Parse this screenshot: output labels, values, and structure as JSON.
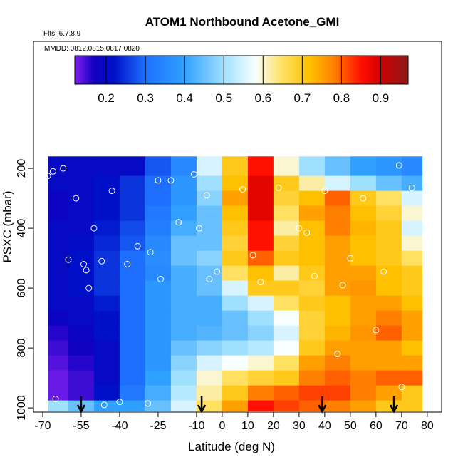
{
  "chart_data": {
    "type": "heatmap",
    "title": "ATOM1 Northbound Acetone_GMI",
    "subtitle": "Flts: 6,7,8,9",
    "annotation": "MMDD: 0812,0815,0817,0820",
    "x_label": "Latitude (deg N)",
    "y_label": "PSXC (mbar)",
    "xlim": [
      -73.6,
      85.6
    ],
    "xticks": [
      -70,
      -55,
      -40,
      -25,
      -10,
      0,
      10,
      20,
      30,
      40,
      50,
      60,
      70,
      80
    ],
    "ylim": [
      1014,
      -224
    ],
    "yticks": [
      200,
      400,
      600,
      800,
      1000
    ],
    "colorbar_lim": [
      0.12,
      0.97
    ],
    "colorbar_ticks": [
      0.2,
      0.3,
      0.4,
      0.5,
      0.6,
      0.7,
      0.8,
      0.9
    ],
    "colormap": [
      {
        "value": 0.12,
        "color": "#8020f0"
      },
      {
        "value": 0.17,
        "color": "#1000c0"
      },
      {
        "value": 0.22,
        "color": "#0010c8"
      },
      {
        "value": 0.3,
        "color": "#1e6fff"
      },
      {
        "value": 0.4,
        "color": "#30a0ff"
      },
      {
        "value": 0.5,
        "color": "#a0e0ff"
      },
      {
        "value": 0.58,
        "color": "#f8ffff"
      },
      {
        "value": 0.65,
        "color": "#ffe060"
      },
      {
        "value": 0.72,
        "color": "#ffc000"
      },
      {
        "value": 0.78,
        "color": "#ff8000"
      },
      {
        "value": 0.85,
        "color": "#ff1000"
      },
      {
        "value": 0.9,
        "color": "#d00000"
      },
      {
        "value": 0.97,
        "color": "#8b1a1a"
      }
    ],
    "lat_edges": [
      -68,
      -60,
      -50,
      -40,
      -30,
      -20,
      -10,
      0,
      10,
      20,
      30,
      40,
      50,
      60,
      70,
      78
    ],
    "pressure_edges": [
      160,
      225,
      275,
      325,
      375,
      425,
      475,
      525,
      575,
      625,
      675,
      725,
      775,
      825,
      875,
      925,
      975,
      1010
    ],
    "z": [
      [
        0.2,
        0.2,
        0.2,
        0.2,
        0.28,
        0.35,
        0.55,
        0.7,
        0.85,
        0.6,
        0.5,
        0.45,
        0.4,
        0.38,
        0.35
      ],
      [
        0.2,
        0.2,
        0.22,
        0.25,
        0.3,
        0.38,
        0.5,
        0.72,
        0.88,
        0.7,
        0.62,
        0.55,
        0.5,
        0.45,
        0.42
      ],
      [
        0.18,
        0.2,
        0.22,
        0.25,
        0.3,
        0.38,
        0.48,
        0.75,
        0.88,
        0.68,
        0.72,
        0.8,
        0.7,
        0.65,
        0.55
      ],
      [
        0.18,
        0.2,
        0.22,
        0.25,
        0.32,
        0.4,
        0.45,
        0.72,
        0.88,
        0.65,
        0.75,
        0.78,
        0.72,
        0.68,
        0.6
      ],
      [
        0.2,
        0.2,
        0.23,
        0.27,
        0.33,
        0.42,
        0.45,
        0.7,
        0.85,
        0.62,
        0.72,
        0.78,
        0.73,
        0.7,
        0.55
      ],
      [
        0.2,
        0.21,
        0.24,
        0.28,
        0.35,
        0.45,
        0.45,
        0.68,
        0.85,
        0.68,
        0.72,
        0.75,
        0.72,
        0.7,
        0.6
      ],
      [
        0.2,
        0.22,
        0.25,
        0.3,
        0.36,
        0.45,
        0.48,
        0.7,
        0.8,
        0.7,
        0.72,
        0.75,
        0.72,
        0.7,
        0.65
      ],
      [
        0.2,
        0.22,
        0.25,
        0.3,
        0.35,
        0.42,
        0.45,
        0.65,
        0.72,
        0.62,
        0.7,
        0.75,
        0.75,
        0.72,
        0.7
      ],
      [
        0.2,
        0.22,
        0.25,
        0.3,
        0.38,
        0.42,
        0.45,
        0.55,
        0.7,
        0.7,
        0.68,
        0.75,
        0.76,
        0.72,
        0.7
      ],
      [
        0.2,
        0.2,
        0.23,
        0.3,
        0.38,
        0.42,
        0.42,
        0.5,
        0.55,
        0.65,
        0.7,
        0.72,
        0.75,
        0.75,
        0.72
      ],
      [
        0.18,
        0.2,
        0.22,
        0.3,
        0.38,
        0.42,
        0.42,
        0.45,
        0.5,
        0.58,
        0.68,
        0.72,
        0.75,
        0.78,
        0.75
      ],
      [
        0.16,
        0.18,
        0.22,
        0.3,
        0.38,
        0.42,
        0.43,
        0.45,
        0.48,
        0.55,
        0.68,
        0.73,
        0.76,
        0.8,
        0.75
      ],
      [
        0.15,
        0.17,
        0.2,
        0.3,
        0.38,
        0.45,
        0.48,
        0.5,
        0.52,
        0.58,
        0.7,
        0.75,
        0.75,
        0.75,
        0.72
      ],
      [
        0.14,
        0.16,
        0.2,
        0.3,
        0.38,
        0.48,
        0.55,
        0.58,
        0.6,
        0.65,
        0.75,
        0.78,
        0.75,
        0.75,
        0.75
      ],
      [
        0.13,
        0.15,
        0.2,
        0.3,
        0.4,
        0.5,
        0.6,
        0.65,
        0.68,
        0.7,
        0.78,
        0.8,
        0.78,
        0.8,
        0.8
      ],
      [
        0.13,
        0.15,
        0.22,
        0.32,
        0.42,
        0.52,
        0.62,
        0.7,
        0.78,
        0.8,
        0.82,
        0.82,
        0.78,
        0.75,
        0.7
      ],
      [
        0.5,
        0.45,
        0.4,
        0.4,
        0.45,
        0.55,
        0.65,
        0.75,
        0.85,
        0.82,
        0.8,
        0.78,
        0.75,
        0.7,
        0.7
      ]
    ],
    "obs_lat": [
      -68,
      -66,
      -62,
      -57,
      -53,
      -50,
      -47,
      -43,
      -37,
      -33,
      -28,
      -24,
      -20,
      -17,
      -11,
      -9,
      -6,
      -2,
      8,
      12,
      22,
      33,
      36,
      40,
      47,
      50,
      55,
      63,
      69,
      74,
      -65,
      -60,
      -54,
      -52,
      -46,
      -40,
      -29,
      -25,
      -5,
      15,
      30,
      45,
      60,
      70
    ],
    "obs_pres": [
      225,
      210,
      200,
      300,
      540,
      400,
      510,
      275,
      520,
      460,
      480,
      570,
      240,
      380,
      220,
      400,
      290,
      545,
      270,
      490,
      265,
      415,
      560,
      275,
      590,
      500,
      300,
      545,
      190,
      265,
      970,
      505,
      520,
      600,
      990,
      980,
      985,
      240,
      570,
      580,
      400,
      820,
      740,
      930
    ],
    "arrows_lat": [
      -55,
      -8,
      39,
      67
    ]
  }
}
